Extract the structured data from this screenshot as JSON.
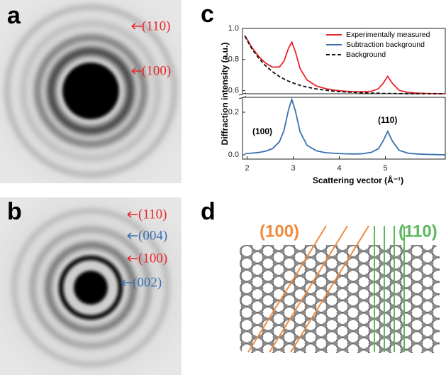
{
  "panels": {
    "a": {
      "label": "a",
      "annotations": [
        "(110)",
        "(100)"
      ]
    },
    "b": {
      "label": "b",
      "annotations": [
        "(110)",
        "(004)",
        "(100)",
        "(002)"
      ]
    },
    "c": {
      "label": "c"
    },
    "d": {
      "label": "d",
      "annotations": [
        "(100)",
        "(110)"
      ]
    }
  },
  "chart_data": [
    {
      "type": "line",
      "ylabel": "Diffraction intensity (a.u.)",
      "x": [
        1.95,
        2.1,
        2.25,
        2.4,
        2.55,
        2.7,
        2.8,
        2.9,
        2.97,
        3.05,
        3.15,
        3.3,
        3.5,
        3.7,
        3.9,
        4.1,
        4.3,
        4.5,
        4.7,
        4.85,
        4.95,
        5.05,
        5.15,
        5.3,
        5.5,
        5.7,
        5.9,
        6.1,
        6.3
      ],
      "xlim": [
        1.9,
        6.3
      ],
      "ylim": [
        0.58,
        1.0
      ],
      "yticks": [
        0.6,
        0.8,
        {
          "value": 1.0,
          "label": "1.0"
        }
      ],
      "legend": "upper right",
      "series": [
        {
          "name": "Experimentally measured",
          "color": "#e8262a",
          "style": "solid",
          "values": [
            0.955,
            0.879,
            0.82,
            0.777,
            0.751,
            0.752,
            0.789,
            0.874,
            0.912,
            0.847,
            0.741,
            0.668,
            0.63,
            0.613,
            0.603,
            0.597,
            0.593,
            0.593,
            0.596,
            0.613,
            0.647,
            0.692,
            0.647,
            0.602,
            0.588,
            0.584,
            0.582,
            0.581,
            0.58
          ]
        },
        {
          "name": "Subtraction background",
          "color": "#3a6fb0",
          "style": "solid",
          "legend_only": true
        },
        {
          "name": "Background",
          "color": "#111111",
          "style": "dashed",
          "values": [
            0.95,
            0.871,
            0.809,
            0.76,
            0.722,
            0.691,
            0.675,
            0.661,
            0.652,
            0.644,
            0.634,
            0.623,
            0.611,
            0.603,
            0.596,
            0.592,
            0.589,
            0.586,
            0.584,
            0.584,
            0.582,
            0.582,
            0.582,
            0.581,
            0.581,
            0.58,
            0.58,
            0.58,
            0.58
          ]
        }
      ]
    },
    {
      "type": "line",
      "xlabel": "Scattering vector (Å⁻¹)",
      "x": [
        1.95,
        2.1,
        2.25,
        2.4,
        2.55,
        2.7,
        2.8,
        2.9,
        2.97,
        3.05,
        3.15,
        3.3,
        3.5,
        3.7,
        3.9,
        4.1,
        4.3,
        4.5,
        4.7,
        4.85,
        4.95,
        5.05,
        5.15,
        5.3,
        5.5,
        5.7,
        5.9,
        6.1,
        6.3
      ],
      "xlim": [
        1.9,
        6.3
      ],
      "ylim": [
        -0.02,
        0.27
      ],
      "xticks": [
        2,
        3,
        4,
        5
      ],
      "yticks": [
        {
          "value": 0.0,
          "label": "0.0"
        },
        0.2
      ],
      "annotations": [
        "(100)",
        "(110)"
      ],
      "series": [
        {
          "name": "Subtraction background",
          "color": "#3a6fb0",
          "style": "solid",
          "values": [
            0.005,
            0.008,
            0.011,
            0.017,
            0.029,
            0.061,
            0.114,
            0.213,
            0.26,
            0.203,
            0.107,
            0.045,
            0.019,
            0.01,
            0.007,
            0.005,
            0.004,
            0.005,
            0.012,
            0.029,
            0.065,
            0.11,
            0.065,
            0.021,
            0.007,
            0.004,
            0.002,
            0.001,
            0.0
          ]
        }
      ]
    }
  ]
}
